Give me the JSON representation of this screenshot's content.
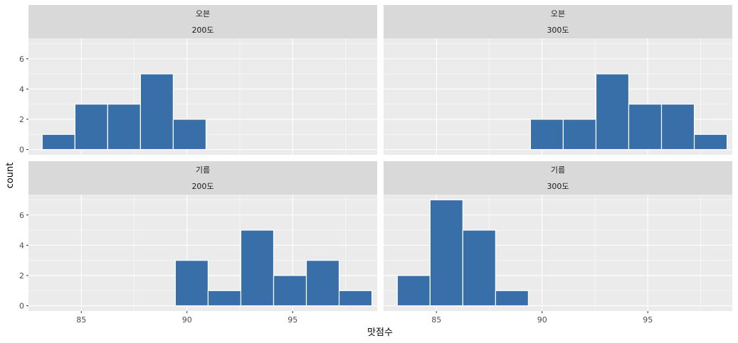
{
  "chart_data": {
    "type": "bar",
    "subtype": "faceted histogram",
    "xlabel": "맛점수",
    "ylabel": "count",
    "xlim": [
      82.5,
      99
    ],
    "ylim": [
      -0.35,
      7.35
    ],
    "x_ticks": [
      85,
      90,
      95
    ],
    "y_ticks": [
      0,
      2,
      4,
      6
    ],
    "bin_width": 1.55,
    "bar_color": "#386fa8",
    "panel_background": "#ebebeb",
    "strip_background": "#d9d9d9",
    "grid": true,
    "panels": [
      {
        "strip": [
          "오븐",
          "200도"
        ],
        "bins": [
          {
            "x0": 83.15,
            "x1": 84.7,
            "count": 1
          },
          {
            "x0": 84.7,
            "x1": 86.25,
            "count": 3
          },
          {
            "x0": 86.25,
            "x1": 87.8,
            "count": 3
          },
          {
            "x0": 87.8,
            "x1": 89.35,
            "count": 5
          },
          {
            "x0": 89.35,
            "x1": 90.9,
            "count": 2
          }
        ]
      },
      {
        "strip": [
          "오븐",
          "300도"
        ],
        "bins": [
          {
            "x0": 89.45,
            "x1": 91.0,
            "count": 2
          },
          {
            "x0": 91.0,
            "x1": 92.55,
            "count": 2
          },
          {
            "x0": 92.55,
            "x1": 94.1,
            "count": 5
          },
          {
            "x0": 94.1,
            "x1": 95.65,
            "count": 3
          },
          {
            "x0": 95.65,
            "x1": 97.2,
            "count": 3
          },
          {
            "x0": 97.2,
            "x1": 98.75,
            "count": 1
          }
        ]
      },
      {
        "strip": [
          "기름",
          "200도"
        ],
        "bins": [
          {
            "x0": 89.45,
            "x1": 91.0,
            "count": 3
          },
          {
            "x0": 91.0,
            "x1": 92.55,
            "count": 1
          },
          {
            "x0": 92.55,
            "x1": 94.1,
            "count": 5
          },
          {
            "x0": 94.1,
            "x1": 95.65,
            "count": 2
          },
          {
            "x0": 95.65,
            "x1": 97.2,
            "count": 3
          },
          {
            "x0": 97.2,
            "x1": 98.75,
            "count": 1
          }
        ]
      },
      {
        "strip": [
          "기름",
          "300도"
        ],
        "bins": [
          {
            "x0": 83.15,
            "x1": 84.7,
            "count": 2
          },
          {
            "x0": 84.7,
            "x1": 86.25,
            "count": 7
          },
          {
            "x0": 86.25,
            "x1": 87.8,
            "count": 5
          },
          {
            "x0": 87.8,
            "x1": 89.35,
            "count": 1
          }
        ]
      }
    ]
  }
}
